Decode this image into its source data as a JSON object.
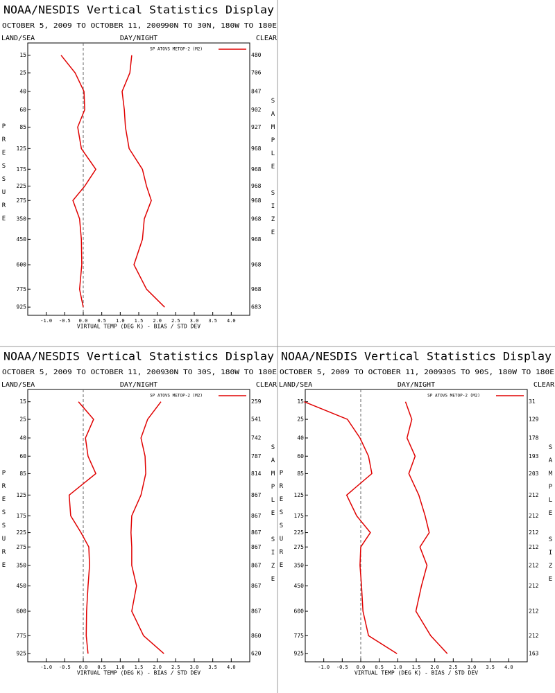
{
  "chart_data": [
    {
      "type": "line",
      "title": "NOAA/NESDIS Vertical Statistics Display",
      "date_range": "OCTOBER 5, 2009 TO OCTOBER 11, 2009",
      "region": "90N TO 30N, 180W TO 180E",
      "land_sea_label": "LAND/SEA",
      "day_night_label": "DAY/NIGHT",
      "clear_label": "CLEAR",
      "ylabel": "PRESSURE",
      "y2label": "SAMPLE SIZE",
      "xlabel": "VIRTUAL TEMP (DEG K) - BIAS / STD DEV",
      "y": [
        15,
        25,
        40,
        60,
        85,
        125,
        175,
        225,
        275,
        350,
        450,
        600,
        775,
        925
      ],
      "sample_size": [
        480,
        706,
        847,
        902,
        927,
        968,
        968,
        968,
        968,
        968,
        968,
        968,
        968,
        683
      ],
      "series": [
        {
          "name": "SP ATOVS METOP-2 (M2)",
          "color": "#e00000",
          "values": [
            -0.6,
            -0.22,
            0.02,
            0.04,
            -0.15,
            -0.05,
            0.34,
            0.04,
            -0.28,
            -0.1,
            -0.05,
            -0.04,
            -0.1,
            0.0
          ]
        },
        {
          "color": "#e00000",
          "values": [
            1.31,
            1.26,
            1.05,
            1.11,
            1.14,
            1.24,
            1.6,
            1.71,
            1.84,
            1.65,
            1.6,
            1.37,
            1.71,
            2.2
          ]
        }
      ],
      "xlim": [
        -1.5,
        4.5
      ],
      "ylim": [
        10,
        1000
      ],
      "xticks": [
        {
          "value": -1,
          "label": "-1.0"
        },
        {
          "value": -0.5,
          "label": "-0.5"
        },
        {
          "value": 0,
          "label": "0.0"
        },
        0.5,
        {
          "value": 1,
          "label": "1.0"
        },
        1.5,
        {
          "value": 2,
          "label": "2.0"
        },
        2.5,
        {
          "value": 3,
          "label": "3.0"
        },
        3.5,
        {
          "value": 4,
          "label": "4.0"
        }
      ]
    },
    {
      "type": "line",
      "title": "NOAA/NESDIS Vertical Statistics Display",
      "date_range": "OCTOBER 5, 2009 TO OCTOBER 11, 2009",
      "region": "30N TO 30S, 180W TO 180E",
      "land_sea_label": "LAND/SEA",
      "day_night_label": "DAY/NIGHT",
      "clear_label": "CLEAR",
      "ylabel": "PRESSURE",
      "y2label": "SAMPLE SIZE",
      "xlabel": "VIRTUAL TEMP (DEG K) - BIAS / STD DEV",
      "y": [
        15,
        25,
        40,
        60,
        85,
        125,
        175,
        225,
        275,
        350,
        450,
        600,
        775,
        925
      ],
      "sample_size": [
        259,
        541,
        742,
        787,
        814,
        867,
        867,
        867,
        867,
        867,
        867,
        867,
        860,
        620
      ],
      "series": [
        {
          "name": "SP ATOVS METOP-2 (M2)",
          "color": "#e00000",
          "values": [
            -0.13,
            0.28,
            0.06,
            0.13,
            0.34,
            -0.38,
            -0.34,
            -0.06,
            0.15,
            0.17,
            0.13,
            0.09,
            0.08,
            0.13
          ]
        },
        {
          "color": "#e00000",
          "values": [
            2.1,
            1.74,
            1.56,
            1.67,
            1.69,
            1.56,
            1.31,
            1.29,
            1.31,
            1.31,
            1.44,
            1.31,
            1.63,
            2.18
          ]
        }
      ],
      "xlim": [
        -1.5,
        4.5
      ],
      "ylim": [
        10,
        1000
      ],
      "xticks": [
        {
          "value": -1,
          "label": "-1.0"
        },
        {
          "value": -0.5,
          "label": "-0.5"
        },
        {
          "value": 0,
          "label": "0.0"
        },
        0.5,
        {
          "value": 1,
          "label": "1.0"
        },
        1.5,
        {
          "value": 2,
          "label": "2.0"
        },
        2.5,
        {
          "value": 3,
          "label": "3.0"
        },
        3.5,
        {
          "value": 4,
          "label": "4.0"
        }
      ]
    },
    {
      "type": "line",
      "title": "NOAA/NESDIS Vertical Statistics Display",
      "date_range": "OCTOBER 5, 2009 TO OCTOBER 11, 2009",
      "region": "30S TO 90S, 180W TO 180E",
      "land_sea_label": "LAND/SEA",
      "day_night_label": "DAY/NIGHT",
      "clear_label": "CLEAR",
      "ylabel": "PRESSURE",
      "y2label": "SAMPLE SIZE",
      "xlabel": "VIRTUAL TEMP (DEG K) - BIAS / STD DEV",
      "y": [
        15,
        25,
        40,
        60,
        85,
        125,
        175,
        225,
        275,
        350,
        450,
        600,
        775,
        925
      ],
      "sample_size": [
        31,
        129,
        178,
        193,
        203,
        212,
        212,
        212,
        212,
        212,
        212,
        212,
        212,
        163
      ],
      "series": [
        {
          "name": "SP ATOVS METOP-2 (M2)",
          "color": "#e00000",
          "values": [
            -1.53,
            -0.36,
            -0.02,
            0.21,
            0.3,
            -0.38,
            -0.11,
            0.26,
            0.0,
            -0.02,
            0.02,
            0.06,
            0.21,
            0.98
          ]
        },
        {
          "color": "#e00000",
          "values": [
            1.21,
            1.38,
            1.25,
            1.47,
            1.3,
            1.57,
            1.74,
            1.85,
            1.6,
            1.79,
            1.64,
            1.49,
            1.89,
            2.34
          ]
        }
      ],
      "xlim": [
        -1.5,
        4.5
      ],
      "ylim": [
        10,
        1000
      ],
      "xticks": [
        {
          "value": -1,
          "label": "-1.0"
        },
        {
          "value": -0.5,
          "label": "-0.5"
        },
        {
          "value": 0,
          "label": "0.0"
        },
        0.5,
        {
          "value": 1,
          "label": "1.0"
        },
        1.5,
        {
          "value": 2,
          "label": "2.0"
        },
        2.5,
        {
          "value": 3,
          "label": "3.0"
        },
        3.5,
        {
          "value": 4,
          "label": "4.0"
        }
      ]
    }
  ]
}
